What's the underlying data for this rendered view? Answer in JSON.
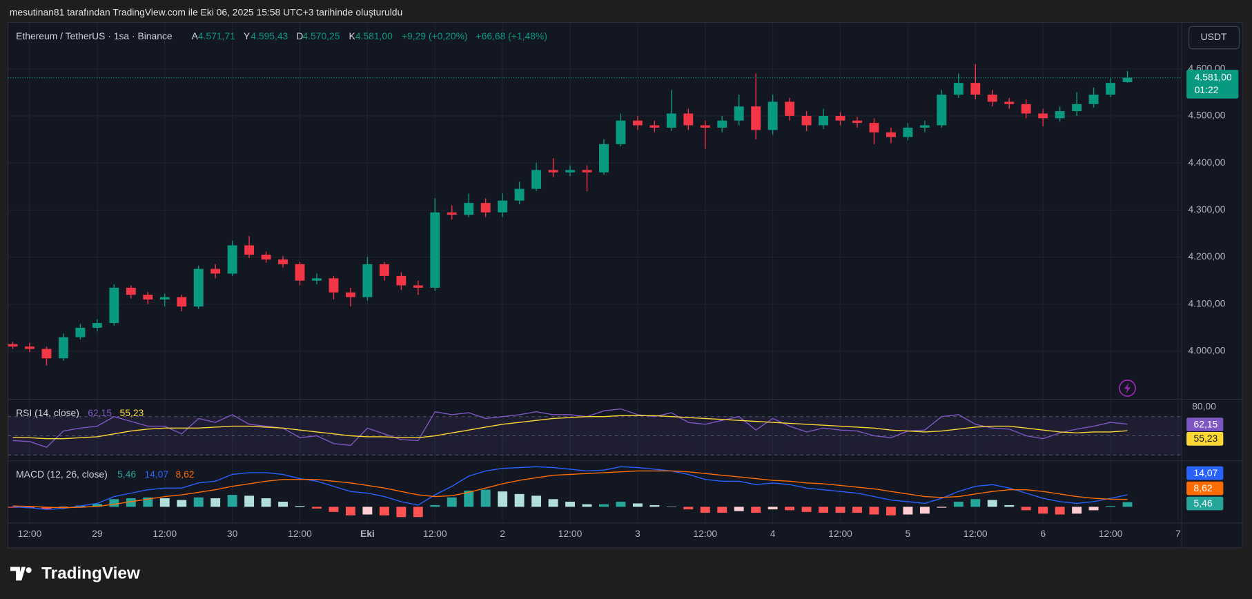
{
  "header": {
    "title": "mesutinan81 tarafından TradingView.com ile Eki 06, 2025 15:58 UTC+3 tarihinde oluşturuldu"
  },
  "legend": {
    "symbol": "Ethereum / TetherUS · 1sa · Binance",
    "ohlc": [
      {
        "key": "A",
        "label": "4.571,71"
      },
      {
        "key": "Y",
        "label": "4.595,43"
      },
      {
        "key": "D",
        "label": "4.570,25"
      },
      {
        "key": "K",
        "label": "4.581,00"
      }
    ],
    "change": "+9,29 (+0,20%)",
    "change_day": "+66,68 (+1,48%)"
  },
  "currency": "USDT",
  "last_price": {
    "label": "4.581,00",
    "countdown": "01:22"
  },
  "footer": {
    "brand": "TradingView"
  },
  "chart_data": [
    {
      "type": "candlestick",
      "up_color": "#089981",
      "down_color": "#f23645",
      "grid": true,
      "xticks": [
        "12:00",
        "29",
        "12:00",
        "30",
        "12:00",
        "Eki",
        "12:00",
        "2",
        "12:00",
        "3",
        "12:00",
        "4",
        "12:00",
        "5",
        "12:00",
        "6",
        "12:00",
        "7"
      ],
      "ylim": [
        3898,
        4695
      ],
      "yticks": [
        {
          "value": 4000,
          "label": "4.000,00"
        },
        {
          "value": 4100,
          "label": "4.100,00"
        },
        {
          "value": 4200,
          "label": "4.200,00"
        },
        {
          "value": 4300,
          "label": "4.300,00"
        },
        {
          "value": 4400,
          "label": "4.400,00"
        },
        {
          "value": 4500,
          "label": "4.500,00"
        },
        {
          "value": 4600,
          "label": "4.600,00"
        }
      ],
      "open": [
        4015,
        4010,
        4005,
        3985,
        4030,
        4050,
        4060,
        4135,
        4120,
        4110,
        4115,
        4095,
        4175,
        4165,
        4225,
        4205,
        4195,
        4185,
        4150,
        4155,
        4125,
        4115,
        4185,
        4160,
        4140,
        4135,
        4295,
        4290,
        4315,
        4295,
        4320,
        4345,
        4385,
        4380,
        4385,
        4380,
        4440,
        4490,
        4480,
        4475,
        4505,
        4480,
        4475,
        4490,
        4520,
        4470,
        4530,
        4500,
        4480,
        4500,
        4490,
        4485,
        4465,
        4455,
        4475,
        4480,
        4545,
        4570,
        4545,
        4530,
        4525,
        4505,
        4495,
        4510,
        4525,
        4545,
        4571.71
      ],
      "high": [
        4020,
        4018,
        4010,
        4038,
        4058,
        4068,
        4142,
        4140,
        4126,
        4122,
        4120,
        4182,
        4185,
        4235,
        4245,
        4212,
        4202,
        4190,
        4165,
        4160,
        4135,
        4200,
        4190,
        4168,
        4150,
        4325,
        4310,
        4335,
        4325,
        4335,
        4360,
        4400,
        4410,
        4395,
        4395,
        4450,
        4505,
        4500,
        4490,
        4555,
        4515,
        4490,
        4500,
        4545,
        4590,
        4545,
        4538,
        4510,
        4515,
        4508,
        4498,
        4495,
        4475,
        4485,
        4490,
        4555,
        4590,
        4610,
        4555,
        4538,
        4535,
        4515,
        4520,
        4550,
        4560,
        4580,
        4595.43
      ],
      "low": [
        4005,
        3998,
        3970,
        3980,
        4025,
        4042,
        4055,
        4112,
        4100,
        4095,
        4085,
        4090,
        4155,
        4160,
        4198,
        4188,
        4178,
        4140,
        4142,
        4110,
        4095,
        4108,
        4150,
        4130,
        4120,
        4128,
        4280,
        4285,
        4285,
        4285,
        4312,
        4340,
        4370,
        4372,
        4340,
        4375,
        4435,
        4470,
        4465,
        4468,
        4470,
        4430,
        4465,
        4480,
        4450,
        4460,
        4490,
        4468,
        4472,
        4480,
        4475,
        4440,
        4442,
        4448,
        4465,
        4475,
        4538,
        4535,
        4520,
        4515,
        4495,
        4478,
        4488,
        4500,
        4518,
        4540,
        4570.25
      ],
      "close": [
        4010,
        4005,
        3985,
        4030,
        4050,
        4060,
        4135,
        4120,
        4110,
        4115,
        4095,
        4175,
        4165,
        4225,
        4205,
        4195,
        4185,
        4150,
        4155,
        4125,
        4115,
        4185,
        4160,
        4140,
        4135,
        4295,
        4290,
        4315,
        4295,
        4320,
        4345,
        4385,
        4380,
        4385,
        4380,
        4440,
        4490,
        4480,
        4475,
        4505,
        4480,
        4475,
        4490,
        4520,
        4470,
        4530,
        4500,
        4480,
        4500,
        4490,
        4485,
        4465,
        4455,
        4475,
        4480,
        4545,
        4570,
        4545,
        4530,
        4525,
        4505,
        4495,
        4510,
        4525,
        4545,
        4570,
        4581
      ]
    },
    {
      "type": "line",
      "title": "RSI (14, close)",
      "ylim": [
        24,
        88
      ],
      "yticks": [
        {
          "value": 80,
          "label": "80,00"
        }
      ],
      "levels": [
        70,
        50,
        30
      ],
      "band_color": "#7e57c2",
      "series": [
        {
          "name": "62,15",
          "color": "#7e57c2",
          "values": [
            45,
            44,
            38,
            55,
            58,
            60,
            70,
            65,
            60,
            60,
            52,
            68,
            64,
            72,
            62,
            60,
            58,
            48,
            50,
            42,
            40,
            58,
            52,
            46,
            45,
            75,
            72,
            74,
            68,
            70,
            72,
            75,
            72,
            72,
            70,
            76,
            78,
            72,
            70,
            74,
            64,
            62,
            66,
            70,
            56,
            68,
            60,
            54,
            58,
            56,
            55,
            50,
            48,
            55,
            56,
            70,
            72,
            62,
            58,
            57,
            50,
            47,
            53,
            57,
            60,
            64,
            62.15
          ]
        },
        {
          "name": "55,23",
          "color": "#fdd835",
          "values": [
            48,
            48,
            47,
            47,
            48,
            49,
            52,
            55,
            57,
            58,
            58,
            58,
            59,
            60,
            60,
            59,
            58,
            56,
            54,
            52,
            50,
            49,
            49,
            48,
            48,
            50,
            53,
            56,
            59,
            62,
            64,
            66,
            68,
            69,
            70,
            70,
            71,
            71,
            71,
            70,
            69,
            68,
            67,
            66,
            65,
            64,
            63,
            62,
            61,
            60,
            59,
            58,
            56,
            55,
            54,
            55,
            57,
            59,
            60,
            60,
            58,
            56,
            54,
            53,
            54,
            54,
            55.23
          ]
        }
      ]
    },
    {
      "type": "macd",
      "title": "MACD (12, 26, close)",
      "ylim": [
        -19,
        53
      ],
      "histogram_name": "5,46",
      "histogram_colors": [
        "#26a69a",
        "#b2dfdb",
        "#ff5252",
        "#ffcdd2"
      ],
      "histogram": [
        -1,
        -1.5,
        -2.5,
        -1,
        1.5,
        3.5,
        9,
        10,
        11,
        10,
        8,
        11,
        10,
        14,
        13,
        10,
        6,
        1,
        -2,
        -6,
        -10,
        -9,
        -10,
        -12,
        -12,
        2,
        11,
        19,
        20,
        18,
        15,
        13,
        9,
        6,
        3,
        3,
        6,
        4,
        2,
        0,
        -3,
        -7,
        -7,
        -5,
        -7,
        -3,
        -4,
        -6,
        -7,
        -7,
        -7,
        -9,
        -10,
        -9,
        -8,
        -1,
        6,
        9,
        8,
        2,
        -4,
        -8,
        -9,
        -8,
        -4,
        1,
        5.46
      ],
      "series": [
        {
          "name": "14,07",
          "color": "#2962ff",
          "values": [
            0,
            -1,
            -3,
            -2,
            1,
            4,
            12,
            16,
            20,
            22,
            22,
            28,
            30,
            38,
            40,
            40,
            38,
            33,
            30,
            24,
            18,
            16,
            12,
            6,
            2,
            14,
            24,
            36,
            42,
            45,
            46,
            47,
            46,
            44,
            42,
            43,
            47,
            46,
            44,
            42,
            38,
            32,
            30,
            30,
            26,
            28,
            26,
            22,
            20,
            18,
            16,
            12,
            8,
            6,
            4,
            10,
            18,
            24,
            26,
            22,
            16,
            10,
            6,
            4,
            6,
            10,
            14.07
          ]
        },
        {
          "name": "8,62",
          "color": "#ff6d00",
          "values": [
            1,
            0.5,
            -0.5,
            -1,
            -0.5,
            0.5,
            3,
            6,
            9,
            12,
            14,
            17,
            20,
            24,
            27,
            30,
            32,
            32,
            32,
            30,
            28,
            25,
            22,
            18,
            14,
            12,
            13,
            17,
            22,
            27,
            31,
            34,
            37,
            38,
            39,
            40,
            41,
            42,
            42,
            42,
            41,
            39,
            37,
            35,
            33,
            31,
            30,
            28,
            27,
            25,
            23,
            21,
            18,
            15,
            12,
            11,
            12,
            15,
            18,
            20,
            20,
            18,
            15,
            12,
            10,
            9,
            8.62
          ]
        }
      ]
    }
  ]
}
